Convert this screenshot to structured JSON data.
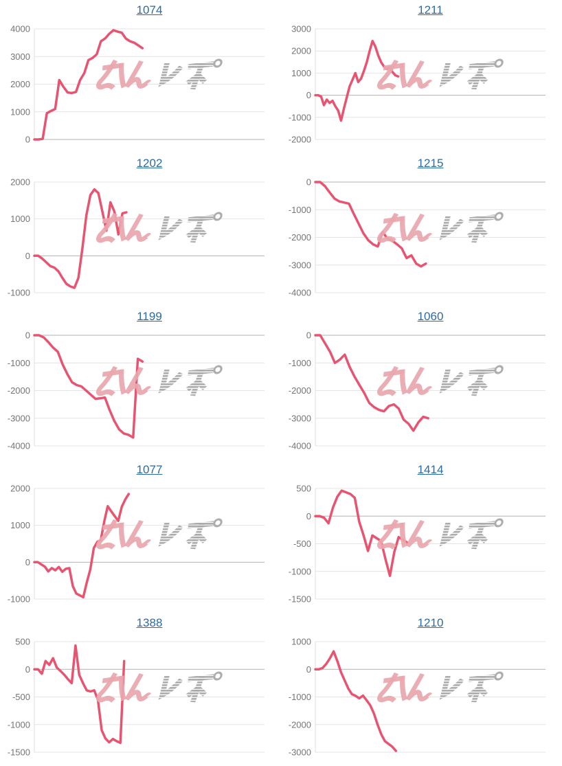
{
  "page": {
    "background": "#ffffff"
  },
  "style": {
    "line_color": "#e85470",
    "title_color": "#2a6aa9",
    "grid_color": "#e4e4e4",
    "zero_line_color": "#b2b2b2",
    "axis_line_color": "#dcdcdc",
    "tick_label_color": "#757575"
  },
  "watermark": {
    "text": "みんレポ",
    "text_pink": "みん",
    "text_gray": "レポ",
    "pink_color": "#e9a6ae",
    "gray_color": "#a9a9a9"
  },
  "chart_data": [
    {
      "type": "line",
      "title": "1074",
      "xlabel": "",
      "ylabel": "",
      "grid": true,
      "legend": false,
      "y_ticks": [
        4000,
        3000,
        2000,
        1000,
        0
      ],
      "ylim": [
        0,
        4000
      ],
      "x_fraction": 0.47,
      "values": [
        0,
        0,
        20,
        950,
        1030,
        1100,
        2150,
        1900,
        1700,
        1680,
        1720,
        2150,
        2400,
        2870,
        2950,
        3080,
        3550,
        3650,
        3820,
        3950,
        3900,
        3860,
        3650,
        3550,
        3500,
        3400,
        3300
      ]
    },
    {
      "type": "line",
      "title": "1211",
      "xlabel": "",
      "ylabel": "",
      "grid": true,
      "legend": false,
      "y_ticks": [
        3000,
        2000,
        1000,
        0,
        -1000,
        -2000
      ],
      "ylim": [
        -2000,
        3000
      ],
      "x_fraction": 0.36,
      "values": [
        0,
        0,
        -60,
        -450,
        -200,
        -350,
        -250,
        -500,
        -700,
        -1150,
        -600,
        -100,
        400,
        700,
        1000,
        600,
        750,
        1100,
        1500,
        2000,
        2450,
        2200,
        1800,
        1500,
        1300,
        1180,
        1250,
        1050,
        900,
        850
      ]
    },
    {
      "type": "line",
      "title": "1202",
      "xlabel": "",
      "ylabel": "",
      "grid": true,
      "legend": false,
      "y_ticks": [
        2000,
        1000,
        0,
        -1000
      ],
      "ylim": [
        -1000,
        2000
      ],
      "x_fraction": 0.4,
      "values": [
        0,
        0,
        -80,
        -180,
        -280,
        -320,
        -420,
        -600,
        -760,
        -830,
        -870,
        -600,
        200,
        1100,
        1650,
        1800,
        1700,
        1200,
        680,
        1450,
        1200,
        580,
        1150,
        1180
      ]
    },
    {
      "type": "line",
      "title": "1215",
      "xlabel": "",
      "ylabel": "",
      "grid": true,
      "legend": false,
      "y_ticks": [
        0,
        -1000,
        -2000,
        -3000,
        -4000
      ],
      "ylim": [
        -4000,
        0
      ],
      "x_fraction": 0.48,
      "values": [
        0,
        0,
        -150,
        -380,
        -600,
        -700,
        -740,
        -780,
        -1150,
        -1500,
        -1850,
        -2100,
        -2250,
        -2330,
        -1800,
        -2050,
        -2120,
        -2250,
        -2400,
        -2750,
        -2650,
        -2950,
        -3050,
        -2950
      ]
    },
    {
      "type": "line",
      "title": "1199",
      "xlabel": "",
      "ylabel": "",
      "grid": true,
      "legend": false,
      "y_ticks": [
        0,
        -1000,
        -2000,
        -3000,
        -4000
      ],
      "ylim": [
        -4000,
        0
      ],
      "x_fraction": 0.47,
      "values": [
        0,
        0,
        -80,
        -250,
        -450,
        -600,
        -1050,
        -1400,
        -1700,
        -1800,
        -1850,
        -2000,
        -2150,
        -2300,
        -2280,
        -2250,
        -2700,
        -3100,
        -3400,
        -3550,
        -3600,
        -3700,
        -850,
        -950
      ]
    },
    {
      "type": "line",
      "title": "1060",
      "xlabel": "",
      "ylabel": "",
      "grid": true,
      "legend": false,
      "y_ticks": [
        0,
        -1000,
        -2000,
        -3000,
        -4000
      ],
      "ylim": [
        -4000,
        0
      ],
      "x_fraction": 0.49,
      "values": [
        0,
        0,
        -300,
        -600,
        -1000,
        -880,
        -700,
        -1150,
        -1500,
        -1800,
        -2100,
        -2450,
        -2600,
        -2700,
        -2750,
        -2560,
        -2500,
        -2650,
        -3050,
        -3200,
        -3450,
        -3150,
        -2950,
        -3000
      ]
    },
    {
      "type": "line",
      "title": "1077",
      "xlabel": "",
      "ylabel": "",
      "grid": true,
      "legend": false,
      "y_ticks": [
        2000,
        1000,
        0,
        -1000
      ],
      "ylim": [
        -1000,
        2000
      ],
      "x_fraction": 0.41,
      "values": [
        0,
        0,
        -60,
        -120,
        -250,
        -160,
        -220,
        -130,
        -260,
        -180,
        -160,
        -650,
        -850,
        -900,
        -950,
        -550,
        -200,
        380,
        550,
        600,
        1100,
        1520,
        1380,
        1250,
        1120,
        1500,
        1700,
        1850
      ]
    },
    {
      "type": "line",
      "title": "1414",
      "xlabel": "",
      "ylabel": "",
      "grid": true,
      "legend": false,
      "y_ticks": [
        500,
        0,
        -500,
        -1000,
        -1500
      ],
      "ylim": [
        -1500,
        500
      ],
      "x_fraction": 0.4,
      "values": [
        0,
        0,
        -30,
        -130,
        150,
        350,
        460,
        430,
        400,
        330,
        -100,
        -350,
        -630,
        -350,
        -400,
        -450,
        -780,
        -1080,
        -650,
        -380,
        -430,
        -480
      ]
    },
    {
      "type": "line",
      "title": "1388",
      "xlabel": "",
      "ylabel": "",
      "grid": true,
      "legend": false,
      "y_ticks": [
        500,
        0,
        -500,
        -1000,
        -1500
      ],
      "ylim": [
        -1500,
        500
      ],
      "x_fraction": 0.39,
      "values": [
        0,
        0,
        -80,
        150,
        80,
        200,
        30,
        -30,
        -100,
        -180,
        -250,
        430,
        -100,
        -250,
        -380,
        -400,
        -380,
        -550,
        -1100,
        -1250,
        -1320,
        -1260,
        -1300,
        -1330,
        150
      ]
    },
    {
      "type": "line",
      "title": "1210",
      "xlabel": "",
      "ylabel": "",
      "grid": true,
      "legend": false,
      "y_ticks": [
        1000,
        0,
        -1000,
        -2000,
        -3000
      ],
      "ylim": [
        -3000,
        1000
      ],
      "x_fraction": 0.35,
      "values": [
        0,
        0,
        50,
        200,
        400,
        650,
        300,
        -100,
        -400,
        -700,
        -900,
        -960,
        -1050,
        -950,
        -1120,
        -1300,
        -1600,
        -2000,
        -2350,
        -2600,
        -2700,
        -2800,
        -2950
      ]
    }
  ]
}
